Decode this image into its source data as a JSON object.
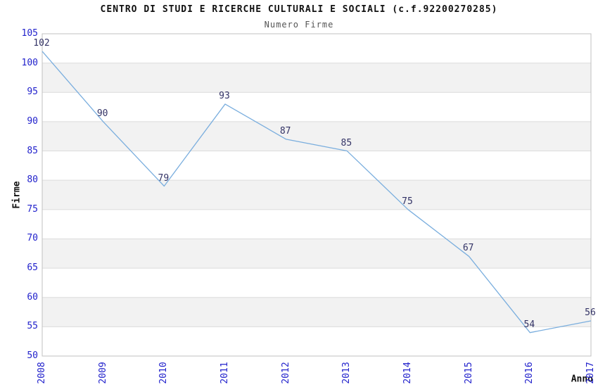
{
  "chart_data": {
    "type": "line",
    "title": "CENTRO DI STUDI E RICERCHE CULTURALI E SOCIALI (c.f.92200270285)",
    "subtitle": "Numero Firme",
    "xlabel": "Anno",
    "ylabel": "Firme",
    "x": [
      2008,
      2009,
      2010,
      2011,
      2012,
      2013,
      2014,
      2015,
      2016,
      2017
    ],
    "series": [
      {
        "name": "Numero Firme",
        "values": [
          102,
          90,
          79,
          93,
          87,
          85,
          75,
          67,
          54,
          56
        ]
      }
    ],
    "ylim": [
      50,
      105
    ],
    "ytick_step": 5,
    "grid": true,
    "bands_alternating": true,
    "legend_position": "none",
    "x_tick_rotation_deg": -90,
    "colors": {
      "line": "#7aaede",
      "tick_label": "#2222cc",
      "data_label": "#333366",
      "band": "#f2f2f2",
      "gridline": "#dcdcdc",
      "plot_border": "#c0c0c0",
      "title": "#111111",
      "subtitle": "#555555",
      "background": "#ffffff"
    }
  }
}
